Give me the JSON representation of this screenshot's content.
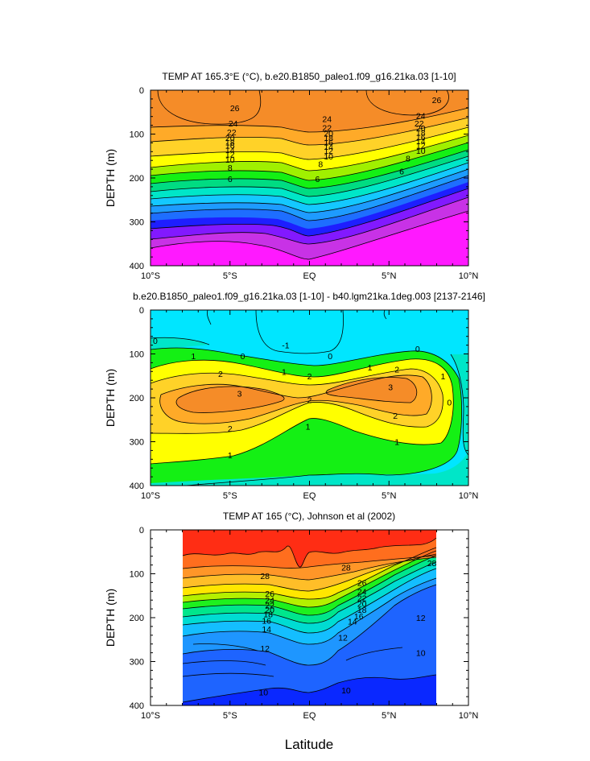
{
  "figure": {
    "x_axis_label": "Latitude"
  },
  "chart_data": [
    {
      "type": "heatmap",
      "title": "TEMP AT 165.3°E (°C), b.e20.B1850_paleo1.f09_g16.21ka.03 [1-10]",
      "ylabel": "DEPTH (m)",
      "xlabel": "",
      "xlim": [
        -10,
        10
      ],
      "ylim": [
        400,
        0
      ],
      "x_ticks": [
        "10°S",
        "5°S",
        "EQ",
        "5°N",
        "10°N"
      ],
      "y_ticks": [
        "0",
        "100",
        "200",
        "300",
        "400"
      ],
      "contour_levels": [
        6,
        8,
        10,
        12,
        14,
        16,
        18,
        20,
        22,
        24,
        26
      ],
      "colors": [
        "#ff19ff",
        "#c832e6",
        "#8219ff",
        "#1e1eff",
        "#1e6eff",
        "#1e9bff",
        "#14c8ff",
        "#00e6c8",
        "#00dc82",
        "#14f014",
        "#a0f000",
        "#ffff00",
        "#ffd228",
        "#ffaa28",
        "#f58c28"
      ],
      "labels": [
        {
          "text": "26",
          "x": -4.7,
          "depth": 40
        },
        {
          "text": "26",
          "x": 8.0,
          "depth": 22
        },
        {
          "text": "24",
          "x": -4.8,
          "depth": 75
        },
        {
          "text": "24",
          "x": 1.1,
          "depth": 65
        },
        {
          "text": "24",
          "x": 7.0,
          "depth": 58
        },
        {
          "text": "22",
          "x": -4.9,
          "depth": 95
        },
        {
          "text": "22",
          "x": 1.1,
          "depth": 85
        },
        {
          "text": "22",
          "x": 6.9,
          "depth": 75
        },
        {
          "text": "20",
          "x": -5.0,
          "depth": 108
        },
        {
          "text": "20",
          "x": 1.2,
          "depth": 98
        },
        {
          "text": "20",
          "x": 7.0,
          "depth": 86
        },
        {
          "text": "18",
          "x": -5.0,
          "depth": 118
        },
        {
          "text": "18",
          "x": 1.2,
          "depth": 108
        },
        {
          "text": "18",
          "x": 7.0,
          "depth": 96
        },
        {
          "text": "16",
          "x": -5.0,
          "depth": 126
        },
        {
          "text": "16",
          "x": 1.2,
          "depth": 118
        },
        {
          "text": "16",
          "x": 7.0,
          "depth": 106
        },
        {
          "text": "14",
          "x": -5.0,
          "depth": 136
        },
        {
          "text": "14",
          "x": 1.2,
          "depth": 128
        },
        {
          "text": "14",
          "x": 7.0,
          "depth": 116
        },
        {
          "text": "12",
          "x": -5.0,
          "depth": 146
        },
        {
          "text": "12",
          "x": 1.2,
          "depth": 138
        },
        {
          "text": "12",
          "x": 7.0,
          "depth": 126
        },
        {
          "text": "10",
          "x": -5.0,
          "depth": 158
        },
        {
          "text": "10",
          "x": 1.2,
          "depth": 150
        },
        {
          "text": "10",
          "x": 7.0,
          "depth": 138
        },
        {
          "text": "8",
          "x": -5.0,
          "depth": 176
        },
        {
          "text": "8",
          "x": 0.7,
          "depth": 168
        },
        {
          "text": "8",
          "x": 6.2,
          "depth": 155
        },
        {
          "text": "6",
          "x": -5.0,
          "depth": 202
        },
        {
          "text": "6",
          "x": 0.5,
          "depth": 202
        },
        {
          "text": "6",
          "x": 5.8,
          "depth": 184
        }
      ]
    },
    {
      "type": "heatmap",
      "title": "b.e20.B1850_paleo1.f09_g16.21ka.03 [1-10] - b40.lgm21ka.1deg.003 [2137-2146]",
      "ylabel": "DEPTH (m)",
      "xlabel": "",
      "xlim": [
        -10,
        10
      ],
      "ylim": [
        400,
        0
      ],
      "x_ticks": [
        "10°S",
        "5°S",
        "EQ",
        "5°N",
        "10°N"
      ],
      "y_ticks": [
        "0",
        "100",
        "200",
        "300",
        "400"
      ],
      "contour_levels": [
        -1,
        0,
        1,
        2,
        3
      ],
      "colors": [
        "#00e6ff",
        "#00e6c8",
        "#14f014",
        "#ffff00",
        "#ffd228",
        "#ffaa28",
        "#f58c28"
      ],
      "labels": [
        {
          "text": "-1",
          "x": -1.5,
          "depth": 80
        },
        {
          "text": "0",
          "x": -9.7,
          "depth": 70
        },
        {
          "text": "0",
          "x": -4.2,
          "depth": 105
        },
        {
          "text": "0",
          "x": 1.3,
          "depth": 105
        },
        {
          "text": "0",
          "x": 6.8,
          "depth": 88
        },
        {
          "text": "0",
          "x": 8.8,
          "depth": 210
        },
        {
          "text": "1",
          "x": -7.3,
          "depth": 105
        },
        {
          "text": "1",
          "x": -1.6,
          "depth": 140
        },
        {
          "text": "1",
          "x": 3.8,
          "depth": 130
        },
        {
          "text": "1",
          "x": 8.4,
          "depth": 150
        },
        {
          "text": "1",
          "x": -0.1,
          "depth": 265
        },
        {
          "text": "1",
          "x": 5.5,
          "depth": 300
        },
        {
          "text": "1",
          "x": -5.0,
          "depth": 330
        },
        {
          "text": "2",
          "x": -5.6,
          "depth": 145
        },
        {
          "text": "2",
          "x": 0.0,
          "depth": 150
        },
        {
          "text": "2",
          "x": 5.5,
          "depth": 135
        },
        {
          "text": "2",
          "x": 0.0,
          "depth": 205
        },
        {
          "text": "2",
          "x": 5.4,
          "depth": 240
        },
        {
          "text": "2",
          "x": -5.0,
          "depth": 270
        },
        {
          "text": "3",
          "x": -4.4,
          "depth": 190
        },
        {
          "text": "3",
          "x": 5.1,
          "depth": 175
        }
      ]
    },
    {
      "type": "heatmap",
      "title": "TEMP AT 165 (°C), Johnson et al (2002)",
      "ylabel": "DEPTH (m)",
      "xlabel": "Latitude",
      "xlim": [
        -10,
        10
      ],
      "ylim": [
        400,
        0
      ],
      "data_xlim": [
        -8,
        8
      ],
      "x_ticks": [
        "10°S",
        "5°S",
        "EQ",
        "5°N",
        "10°N"
      ],
      "y_ticks": [
        "0",
        "100",
        "200",
        "300",
        "400"
      ],
      "contour_levels": [
        10,
        12,
        14,
        16,
        18,
        20,
        22,
        24,
        26,
        28
      ],
      "colors": [
        "#0a28ff",
        "#1e64ff",
        "#1e96ff",
        "#14beff",
        "#00dcd2",
        "#00e68c",
        "#1ef01e",
        "#b4f000",
        "#ffe600",
        "#ffbe28",
        "#ff9628",
        "#ff6e1e",
        "#ff2d14"
      ],
      "labels": [
        {
          "text": "28",
          "x": -2.8,
          "depth": 105
        },
        {
          "text": "28",
          "x": 2.3,
          "depth": 85
        },
        {
          "text": "28",
          "x": 7.7,
          "depth": 75
        },
        {
          "text": "26",
          "x": -2.5,
          "depth": 145
        },
        {
          "text": "26",
          "x": 3.3,
          "depth": 120
        },
        {
          "text": "24",
          "x": -2.5,
          "depth": 160
        },
        {
          "text": "24",
          "x": 3.3,
          "depth": 140
        },
        {
          "text": "22",
          "x": -2.5,
          "depth": 172
        },
        {
          "text": "22",
          "x": 3.3,
          "depth": 155
        },
        {
          "text": "20",
          "x": -2.5,
          "depth": 182
        },
        {
          "text": "20",
          "x": 3.3,
          "depth": 168
        },
        {
          "text": "18",
          "x": -2.6,
          "depth": 192
        },
        {
          "text": "18",
          "x": 3.3,
          "depth": 182
        },
        {
          "text": "16",
          "x": -2.7,
          "depth": 206
        },
        {
          "text": "16",
          "x": 3.1,
          "depth": 196
        },
        {
          "text": "14",
          "x": -2.7,
          "depth": 226
        },
        {
          "text": "14",
          "x": 2.7,
          "depth": 208
        },
        {
          "text": "12",
          "x": -2.8,
          "depth": 270
        },
        {
          "text": "12",
          "x": 2.1,
          "depth": 245
        },
        {
          "text": "12",
          "x": 7.0,
          "depth": 200
        },
        {
          "text": "10",
          "x": -2.9,
          "depth": 370
        },
        {
          "text": "10",
          "x": 2.3,
          "depth": 365
        },
        {
          "text": "10",
          "x": 7.0,
          "depth": 280
        }
      ]
    }
  ]
}
